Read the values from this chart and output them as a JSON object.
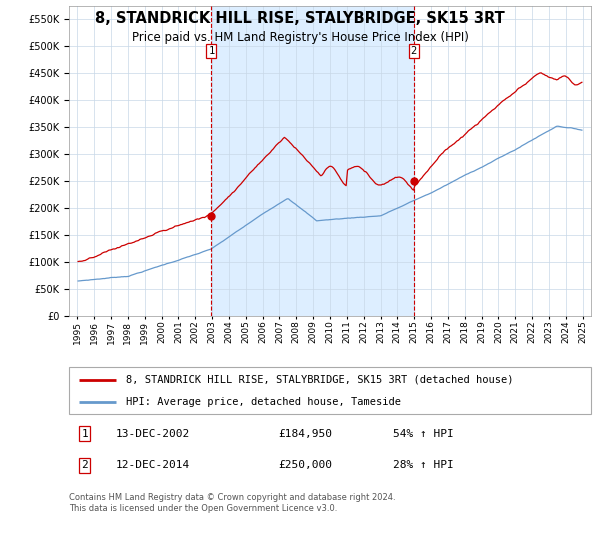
{
  "title": "8, STANDRICK HILL RISE, STALYBRIDGE, SK15 3RT",
  "subtitle": "Price paid vs. HM Land Registry's House Price Index (HPI)",
  "legend_line1": "8, STANDRICK HILL RISE, STALYBRIDGE, SK15 3RT (detached house)",
  "legend_line2": "HPI: Average price, detached house, Tameside",
  "sale1_date": "13-DEC-2002",
  "sale1_price": 184950,
  "sale1_price_str": "£184,950",
  "sale1_pct": "54% ↑ HPI",
  "sale2_date": "12-DEC-2014",
  "sale2_price": 250000,
  "sale2_price_str": "£250,000",
  "sale2_pct": "28% ↑ HPI",
  "footer": "Contains HM Land Registry data © Crown copyright and database right 2024.\nThis data is licensed under the Open Government Licence v3.0.",
  "hpi_color": "#6699cc",
  "price_color": "#cc0000",
  "vline_color": "#cc0000",
  "span_color": "#ddeeff",
  "plot_bg": "#ffffff",
  "grid_color": "#c8d8e8",
  "title_fontsize": 10.5,
  "subtitle_fontsize": 8.5,
  "tick_fontsize": 7,
  "legend_fontsize": 7.5,
  "table_fontsize": 8,
  "footer_fontsize": 6,
  "ylim": [
    0,
    575000
  ],
  "yticks": [
    0,
    50000,
    100000,
    150000,
    200000,
    250000,
    300000,
    350000,
    400000,
    450000,
    500000,
    550000
  ],
  "xlim_start": 1994.5,
  "xlim_end": 2025.5,
  "sale1_year": 2002.96,
  "sale2_year": 2014.96
}
